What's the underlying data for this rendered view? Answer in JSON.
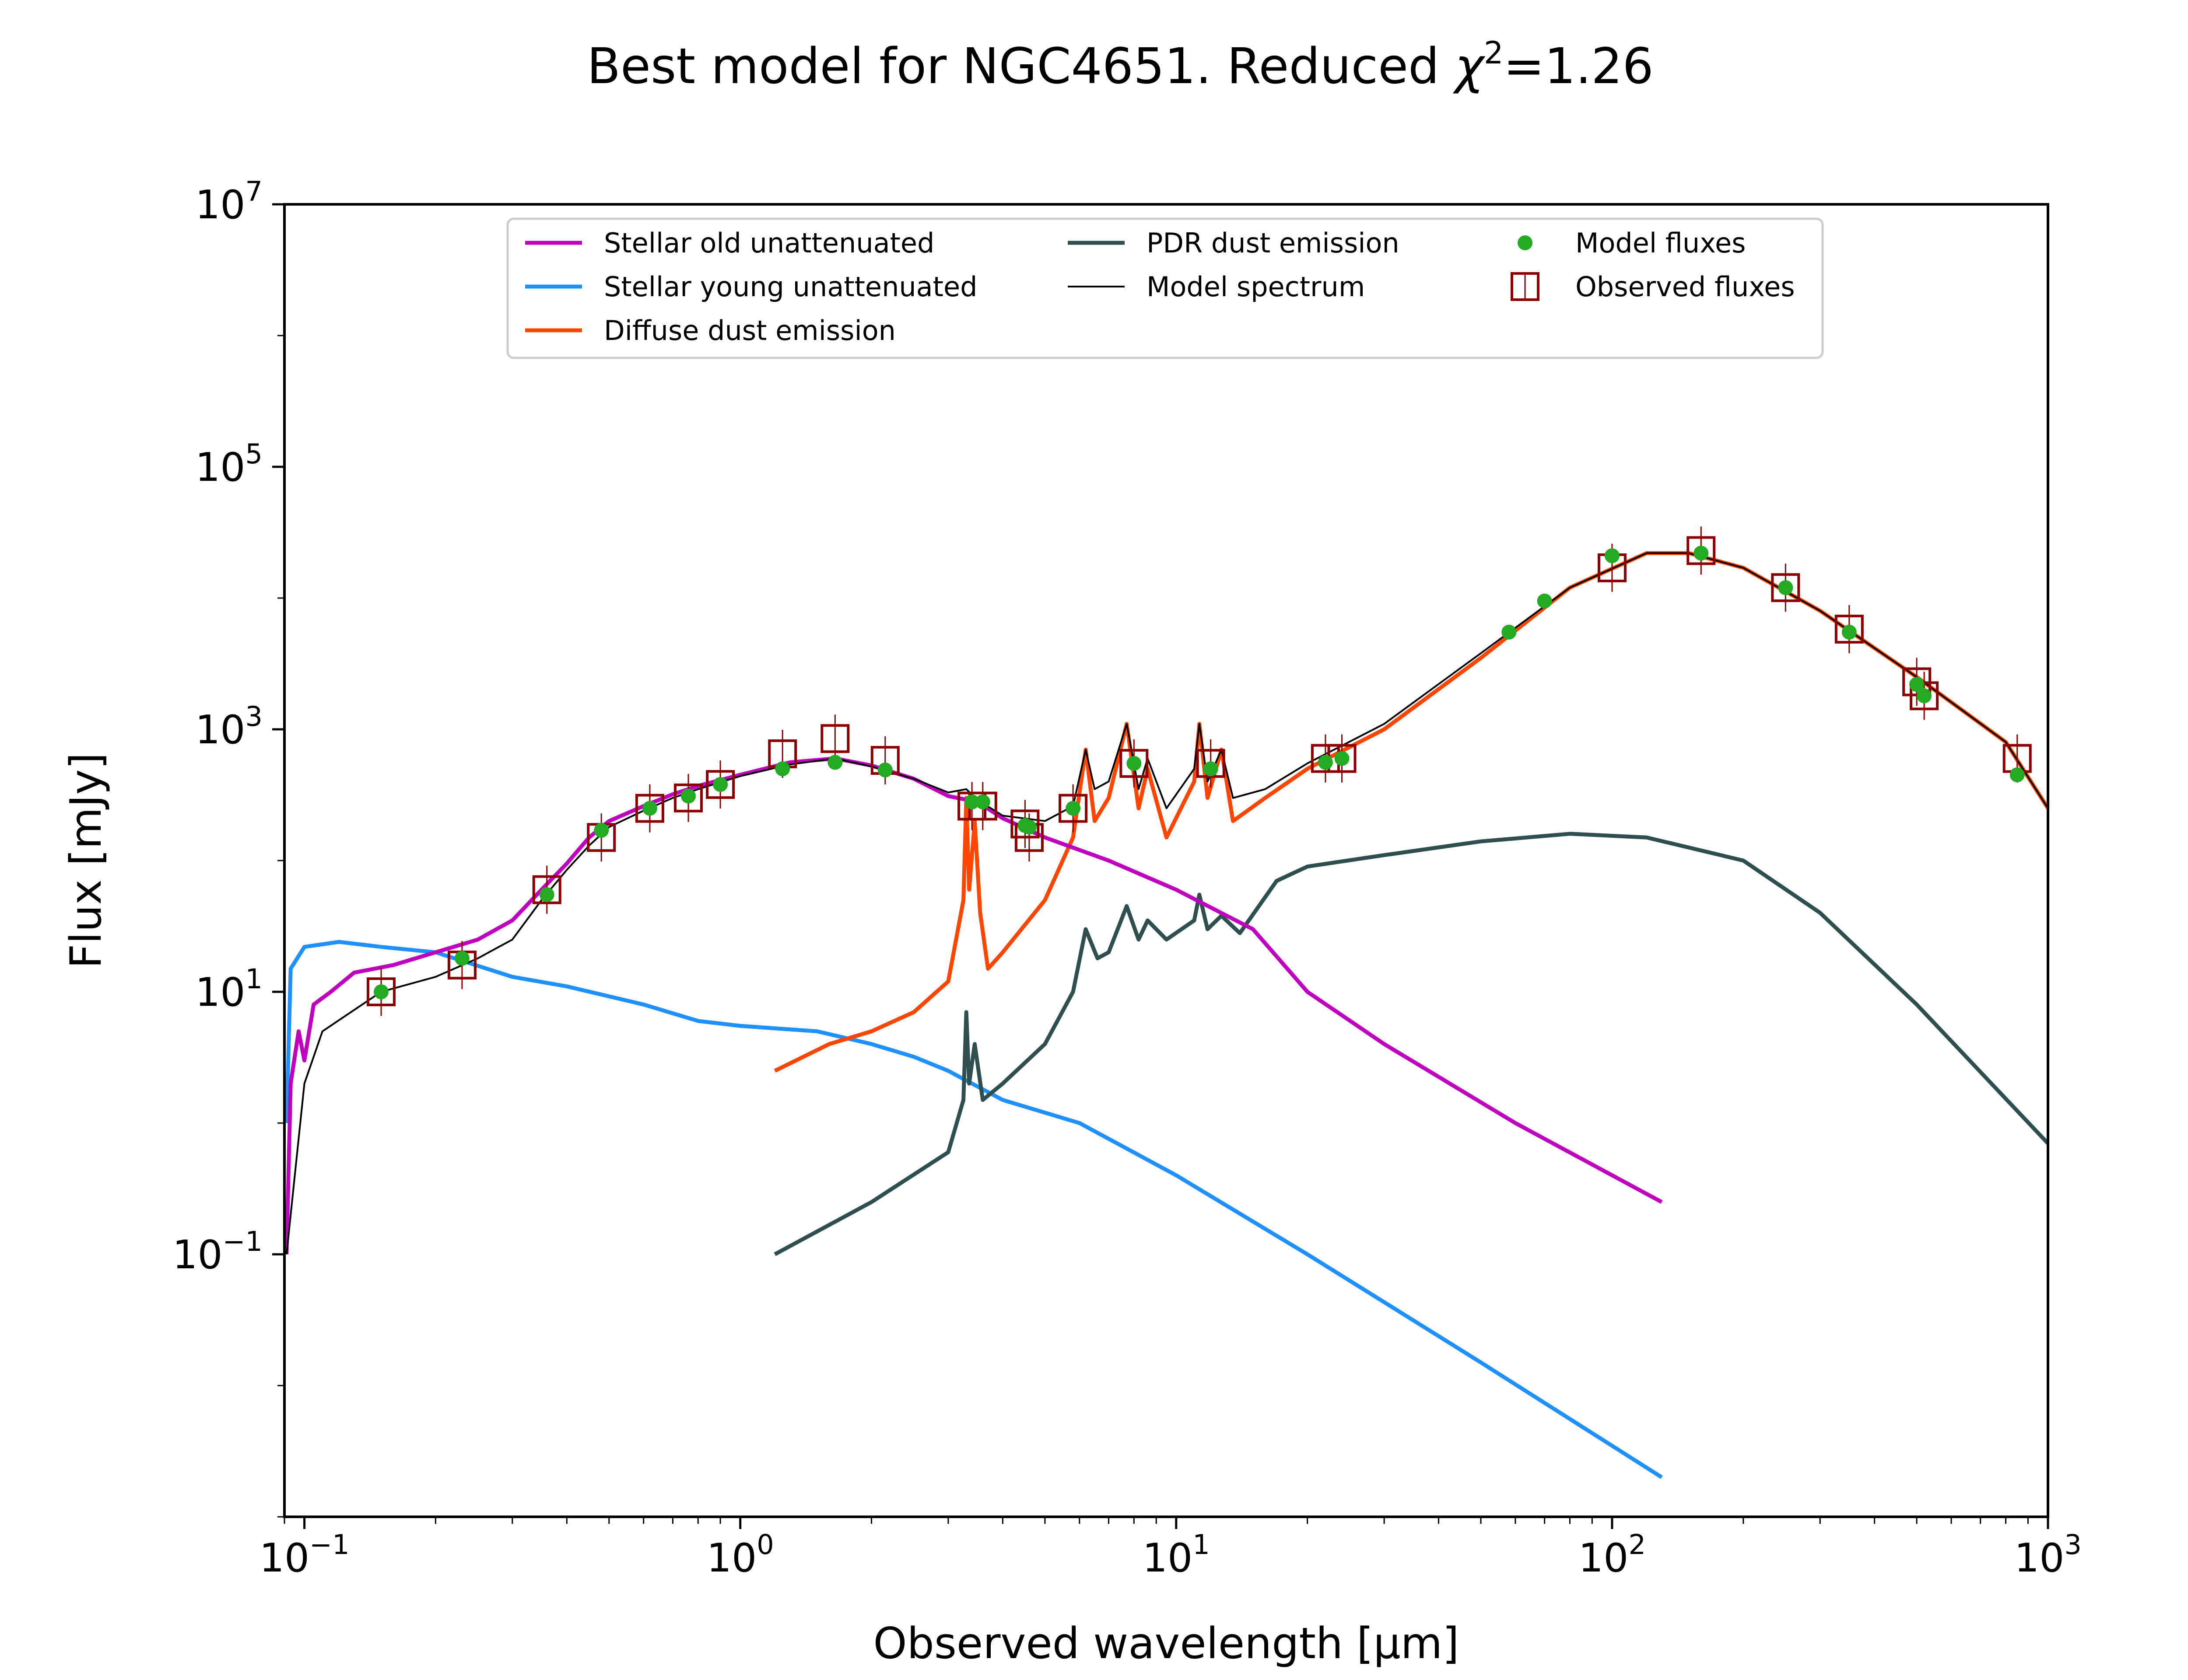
{
  "title_text": "Best model for NGC4651. Reduced",
  "title_chi": "χ",
  "title_chi_exp": "2",
  "title_value": "=1.26",
  "chart_data": {
    "type": "line",
    "title": "Best model for NGC4651. Reduced χ²=1.26",
    "xlabel": "Observed wavelength [μm]",
    "ylabel": "Flux [mJy]",
    "xscale": "log",
    "yscale": "log",
    "xlim": [
      0.09,
      1000
    ],
    "ylim": [
      0.001,
      10000000
    ],
    "grid": false,
    "legend_position": "top-center",
    "x_ticks": [
      {
        "value": 0.1,
        "base": "10",
        "exp": "−1"
      },
      {
        "value": 1,
        "base": "10",
        "exp": "0"
      },
      {
        "value": 10,
        "base": "10",
        "exp": "1"
      },
      {
        "value": 100,
        "base": "10",
        "exp": "2"
      },
      {
        "value": 1000,
        "base": "10",
        "exp": "3"
      }
    ],
    "y_ticks": [
      {
        "value": 0.1,
        "base": "10",
        "exp": "−1"
      },
      {
        "value": 10,
        "base": "10",
        "exp": "1"
      },
      {
        "value": 1000,
        "base": "10",
        "exp": "3"
      },
      {
        "value": 100000,
        "base": "10",
        "exp": "5"
      },
      {
        "value": 10000000,
        "base": "10",
        "exp": "7"
      }
    ],
    "series": [
      {
        "name": "Stellar old unattenuated",
        "kind": "line",
        "color": "#bf00bf",
        "points": [
          [
            0.091,
            0.1
          ],
          [
            0.093,
            2
          ],
          [
            0.097,
            5
          ],
          [
            0.1,
            3
          ],
          [
            0.105,
            8
          ],
          [
            0.115,
            10
          ],
          [
            0.13,
            14
          ],
          [
            0.16,
            16
          ],
          [
            0.2,
            20
          ],
          [
            0.25,
            25
          ],
          [
            0.3,
            35
          ],
          [
            0.35,
            60
          ],
          [
            0.4,
            95
          ],
          [
            0.45,
            150
          ],
          [
            0.5,
            200
          ],
          [
            0.6,
            260
          ],
          [
            0.7,
            320
          ],
          [
            0.8,
            370
          ],
          [
            1.0,
            450
          ],
          [
            1.3,
            560
          ],
          [
            1.65,
            600
          ],
          [
            2.0,
            530
          ],
          [
            2.5,
            420
          ],
          [
            3.0,
            310
          ],
          [
            3.5,
            280
          ],
          [
            4.0,
            210
          ],
          [
            5.0,
            150
          ],
          [
            7.0,
            100
          ],
          [
            10.0,
            60
          ],
          [
            15.0,
            30
          ],
          [
            20.0,
            10
          ],
          [
            30.0,
            4
          ],
          [
            60.0,
            1
          ],
          [
            130.0,
            0.25
          ]
        ]
      },
      {
        "name": "Stellar young unattenuated",
        "kind": "line",
        "color": "#1e90ff",
        "points": [
          [
            0.091,
            1
          ],
          [
            0.093,
            15
          ],
          [
            0.1,
            22
          ],
          [
            0.12,
            24
          ],
          [
            0.15,
            22
          ],
          [
            0.2,
            20
          ],
          [
            0.3,
            13
          ],
          [
            0.4,
            11
          ],
          [
            0.6,
            8
          ],
          [
            0.8,
            6
          ],
          [
            1.0,
            5.5
          ],
          [
            1.5,
            5
          ],
          [
            2.0,
            4
          ],
          [
            2.5,
            3.2
          ],
          [
            3.0,
            2.5
          ],
          [
            4.0,
            1.5
          ],
          [
            6.0,
            1
          ],
          [
            10.0,
            0.4
          ],
          [
            20.0,
            0.1
          ],
          [
            50.0,
            0.015
          ],
          [
            130.0,
            0.002
          ]
        ]
      },
      {
        "name": "Diffuse dust emission",
        "kind": "line",
        "color": "#ff4500",
        "points": [
          [
            1.2,
            2.5
          ],
          [
            1.6,
            4
          ],
          [
            2.0,
            5
          ],
          [
            2.5,
            7
          ],
          [
            3.0,
            12
          ],
          [
            3.25,
            50
          ],
          [
            3.3,
            300
          ],
          [
            3.35,
            60
          ],
          [
            3.45,
            200
          ],
          [
            3.55,
            40
          ],
          [
            3.7,
            15
          ],
          [
            4.0,
            20
          ],
          [
            5.0,
            50
          ],
          [
            5.8,
            150
          ],
          [
            6.2,
            700
          ],
          [
            6.5,
            200
          ],
          [
            7.0,
            300
          ],
          [
            7.7,
            1100
          ],
          [
            8.2,
            250
          ],
          [
            8.6,
            500
          ],
          [
            9.5,
            150
          ],
          [
            11.0,
            400
          ],
          [
            11.3,
            1100
          ],
          [
            11.8,
            300
          ],
          [
            12.7,
            700
          ],
          [
            13.5,
            200
          ],
          [
            16.0,
            300
          ],
          [
            20.0,
            500
          ],
          [
            30.0,
            1000
          ],
          [
            50.0,
            3500
          ],
          [
            80.0,
            12000
          ],
          [
            120.0,
            22000
          ],
          [
            150.0,
            22000
          ],
          [
            200.0,
            17000
          ],
          [
            300.0,
            8000
          ],
          [
            500.0,
            2500
          ],
          [
            800.0,
            800
          ],
          [
            1000.0,
            250
          ]
        ]
      },
      {
        "name": "PDR dust emission",
        "kind": "line",
        "color": "#2f4f4f",
        "points": [
          [
            1.2,
            0.1
          ],
          [
            2.0,
            0.25
          ],
          [
            3.0,
            0.6
          ],
          [
            3.25,
            1.5
          ],
          [
            3.3,
            7
          ],
          [
            3.35,
            2
          ],
          [
            3.45,
            4
          ],
          [
            3.6,
            1.5
          ],
          [
            4.0,
            2
          ],
          [
            5.0,
            4
          ],
          [
            5.8,
            10
          ],
          [
            6.2,
            30
          ],
          [
            6.6,
            18
          ],
          [
            7.0,
            20
          ],
          [
            7.7,
            45
          ],
          [
            8.2,
            25
          ],
          [
            8.6,
            35
          ],
          [
            9.5,
            25
          ],
          [
            11.0,
            35
          ],
          [
            11.3,
            55
          ],
          [
            11.8,
            30
          ],
          [
            12.7,
            38
          ],
          [
            14.0,
            28
          ],
          [
            17.0,
            70
          ],
          [
            20.0,
            90
          ],
          [
            30.0,
            110
          ],
          [
            50.0,
            140
          ],
          [
            80.0,
            160
          ],
          [
            120.0,
            150
          ],
          [
            200.0,
            100
          ],
          [
            300.0,
            40
          ],
          [
            500.0,
            8
          ],
          [
            1000.0,
            0.7
          ]
        ]
      },
      {
        "name": "Model spectrum",
        "kind": "line",
        "color": "#000000",
        "points": [
          [
            0.091,
            0.1
          ],
          [
            0.1,
            2
          ],
          [
            0.11,
            5
          ],
          [
            0.15,
            10
          ],
          [
            0.2,
            13
          ],
          [
            0.25,
            18
          ],
          [
            0.3,
            25
          ],
          [
            0.35,
            50
          ],
          [
            0.4,
            85
          ],
          [
            0.45,
            130
          ],
          [
            0.5,
            180
          ],
          [
            0.6,
            240
          ],
          [
            0.7,
            300
          ],
          [
            0.8,
            350
          ],
          [
            1.0,
            440
          ],
          [
            1.3,
            540
          ],
          [
            1.65,
            600
          ],
          [
            2.0,
            520
          ],
          [
            2.5,
            420
          ],
          [
            3.0,
            330
          ],
          [
            3.3,
            350
          ],
          [
            3.5,
            290
          ],
          [
            4.0,
            220
          ],
          [
            5.0,
            200
          ],
          [
            5.8,
            260
          ],
          [
            6.2,
            700
          ],
          [
            6.5,
            350
          ],
          [
            7.0,
            400
          ],
          [
            7.7,
            1100
          ],
          [
            8.2,
            350
          ],
          [
            8.6,
            600
          ],
          [
            9.5,
            250
          ],
          [
            11.0,
            500
          ],
          [
            11.3,
            1100
          ],
          [
            11.8,
            400
          ],
          [
            12.7,
            700
          ],
          [
            13.5,
            300
          ],
          [
            16.0,
            350
          ],
          [
            20.0,
            550
          ],
          [
            30.0,
            1100
          ],
          [
            50.0,
            3800
          ],
          [
            80.0,
            12000
          ],
          [
            120.0,
            22000
          ],
          [
            150.0,
            22000
          ],
          [
            200.0,
            17000
          ],
          [
            300.0,
            8000
          ],
          [
            500.0,
            2500
          ],
          [
            800.0,
            800
          ],
          [
            1000.0,
            250
          ]
        ]
      },
      {
        "name": "Model fluxes",
        "kind": "scatter",
        "color": "#22aa22",
        "points": [
          [
            0.15,
            10
          ],
          [
            0.23,
            18
          ],
          [
            0.36,
            55
          ],
          [
            0.48,
            170
          ],
          [
            0.62,
            250
          ],
          [
            0.76,
            310
          ],
          [
            0.9,
            380
          ],
          [
            1.25,
            500
          ],
          [
            1.65,
            560
          ],
          [
            2.15,
            490
          ],
          [
            3.4,
            280
          ],
          [
            3.6,
            280
          ],
          [
            4.5,
            185
          ],
          [
            4.6,
            180
          ],
          [
            5.8,
            250
          ],
          [
            8.0,
            550
          ],
          [
            12.0,
            500
          ],
          [
            22.0,
            560
          ],
          [
            24.0,
            600
          ],
          [
            58.0,
            5500
          ],
          [
            70.0,
            9500
          ],
          [
            100.0,
            21000
          ],
          [
            160.0,
            22000
          ],
          [
            250.0,
            12000
          ],
          [
            350.0,
            5500
          ],
          [
            500.0,
            2200
          ],
          [
            520.0,
            1800
          ],
          [
            850.0,
            450
          ]
        ]
      },
      {
        "name": "Observed fluxes",
        "kind": "errorbar",
        "color": "#8b0000",
        "points": [
          [
            0.15,
            10
          ],
          [
            0.23,
            16
          ],
          [
            0.36,
            60
          ],
          [
            0.48,
            150
          ],
          [
            0.62,
            250
          ],
          [
            0.76,
            300
          ],
          [
            0.9,
            380
          ],
          [
            1.25,
            650
          ],
          [
            1.65,
            850
          ],
          [
            2.15,
            580
          ],
          [
            3.4,
            260
          ],
          [
            3.6,
            260
          ],
          [
            4.5,
            190
          ],
          [
            4.6,
            150
          ],
          [
            5.8,
            250
          ],
          [
            8.0,
            550
          ],
          [
            12.0,
            550
          ],
          [
            22.0,
            600
          ],
          [
            24.0,
            600
          ],
          [
            100.0,
            17000
          ],
          [
            160.0,
            23000
          ],
          [
            250.0,
            12000
          ],
          [
            350.0,
            5800
          ],
          [
            500.0,
            2300
          ],
          [
            520.0,
            1800
          ],
          [
            850.0,
            600
          ]
        ]
      }
    ]
  }
}
